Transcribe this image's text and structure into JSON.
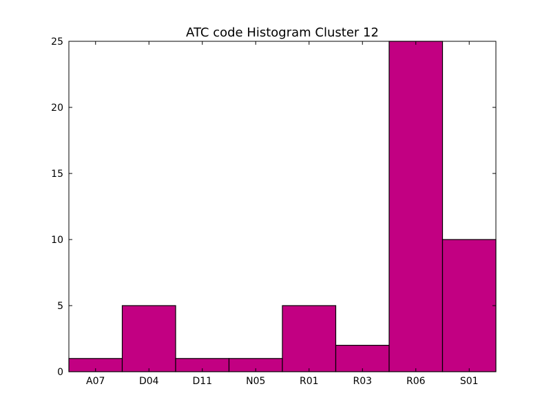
{
  "chart_data": {
    "type": "bar",
    "title": "ATC code Histogram Cluster 12",
    "xlabel": "",
    "ylabel": "",
    "categories": [
      "A07",
      "D04",
      "D11",
      "N05",
      "R01",
      "R03",
      "R06",
      "S01"
    ],
    "values": [
      1,
      5,
      1,
      1,
      5,
      2,
      25,
      10
    ],
    "ylim": [
      0,
      25
    ],
    "yticks": [
      0,
      5,
      10,
      15,
      20,
      25
    ],
    "grid": false,
    "bar_color": "#c20082"
  }
}
